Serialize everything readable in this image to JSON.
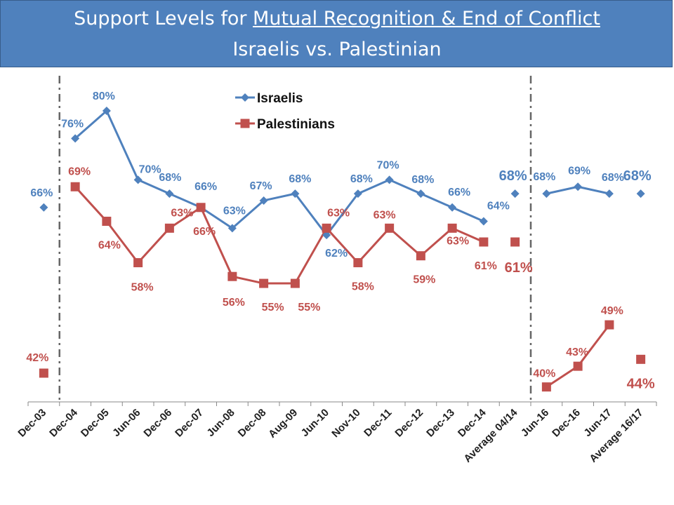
{
  "title": {
    "prefix": "Support Levels for ",
    "underlined": "Mutual Recognition & End of Conflict",
    "line2": "Israelis vs. Palestinian"
  },
  "chart_data": {
    "type": "line",
    "title": "Support Levels for Mutual Recognition & End of Conflict — Israelis vs. Palestinian",
    "categories": [
      "Dec-03",
      "Dec-04",
      "Dec-05",
      "Jun-06",
      "Dec-06",
      "Dec-07",
      "Jun-08",
      "Dec-08",
      "Aug-09",
      "Jun-10",
      "Nov-10",
      "Dec-11",
      "Dec-12",
      "Dec-13",
      "Dec-14",
      "Average 04/14",
      "Jun-16",
      "Dec-16",
      "Jun-17",
      "Average 16/17"
    ],
    "xlabel": "",
    "ylabel": "",
    "ylim": [
      33,
      85
    ],
    "grid": false,
    "legend": "top-center",
    "series": [
      {
        "name": "Israelis",
        "color": "#4f81bd",
        "marker": "diamond",
        "values": [
          66,
          76,
          80,
          70,
          68,
          66,
          63,
          67,
          68,
          62,
          68,
          70,
          68,
          66,
          64,
          68,
          68,
          69,
          68,
          68
        ],
        "labels": [
          "66%",
          "76%",
          "80%",
          "70%",
          "68%",
          "66%",
          "63%",
          "67%",
          "68%",
          "62%",
          "68%",
          "70%",
          "68%",
          "66%",
          "64%",
          "68%",
          "68%",
          "69%",
          "68%",
          "68%"
        ],
        "line_segments": [
          [
            1,
            14
          ],
          [
            16,
            18
          ]
        ]
      },
      {
        "name": "Palestinians",
        "color": "#c0504d",
        "marker": "square",
        "values": [
          42,
          69,
          64,
          58,
          63,
          66,
          56,
          55,
          55,
          63,
          58,
          63,
          59,
          63,
          61,
          61,
          40,
          43,
          49,
          44
        ],
        "labels": [
          "42%",
          "69%",
          "64%",
          "58%",
          "63%",
          "66%",
          "56%",
          "55%",
          "55%",
          "63%",
          "58%",
          "63%",
          "59%",
          "63%",
          "61%",
          "61%",
          "40%",
          "43%",
          "49%",
          "44%"
        ],
        "line_segments": [
          [
            1,
            14
          ],
          [
            16,
            18
          ]
        ]
      }
    ],
    "separators_after": [
      0,
      15
    ]
  }
}
